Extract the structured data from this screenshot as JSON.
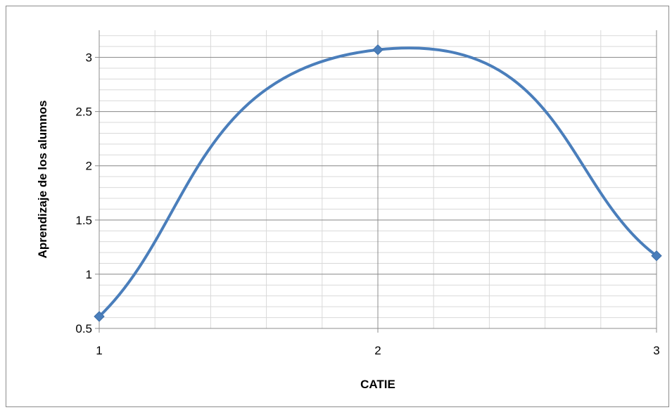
{
  "chart_data": {
    "type": "line",
    "title": "",
    "xlabel": "CATIE",
    "ylabel": "Aprendizaje de los alumnos",
    "x": [
      1,
      2,
      3
    ],
    "series": [
      {
        "values": [
          0.61,
          3.07,
          1.17
        ],
        "color": "#4a7ebb",
        "marker": "diamond",
        "smooth": true
      }
    ],
    "xlim": [
      1,
      3
    ],
    "ylim": [
      0.5,
      3.25
    ],
    "xticks": [
      "1",
      "2",
      "3"
    ],
    "yticks": [
      "0.5",
      "1",
      "1.5",
      "2",
      "2.5",
      "3"
    ],
    "grid": true,
    "legend": "none"
  }
}
